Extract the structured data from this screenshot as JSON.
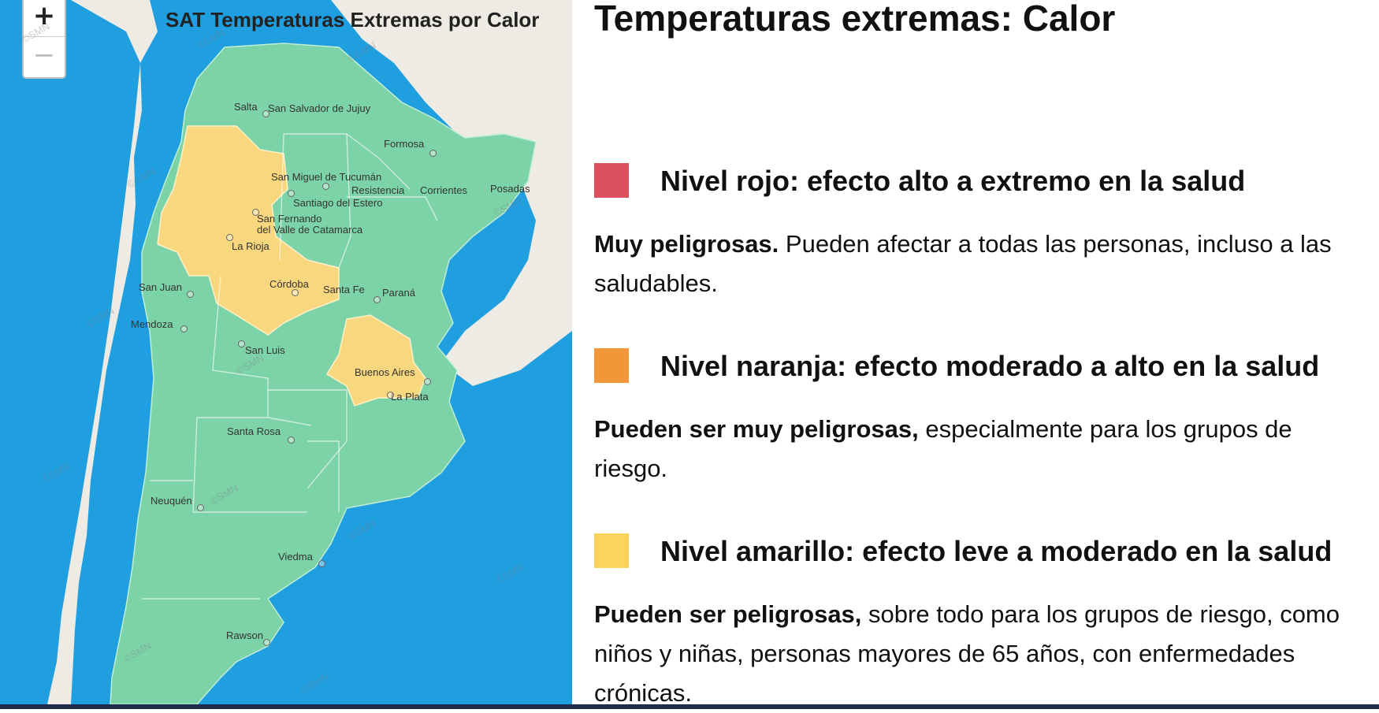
{
  "map": {
    "title": "SAT Temperaturas Extremas por Calor",
    "zoom_in_label": "+",
    "zoom_out_label": "−",
    "watermark": "©SMN",
    "colors": {
      "water": "#1f9fe0",
      "land_neighbor": "#eeebe4",
      "green": "#7dd3a8",
      "yellow": "#f9d77f"
    },
    "cities": [
      "Salta",
      "San Salvador de Jujuy",
      "Formosa",
      "San Miguel de Tucumán",
      "Resistencia",
      "Corrientes",
      "Posadas",
      "Santiago del Estero",
      "San Fernando",
      "del Valle de Catamarca",
      "La Rioja",
      "San Juan",
      "Córdoba",
      "Santa Fe",
      "Paraná",
      "Mendoza",
      "San Luis",
      "Buenos Aires",
      "La Plata",
      "Santa Rosa",
      "Neuquén",
      "Viedma",
      "Rawson"
    ]
  },
  "panel": {
    "title": "Temperaturas extremas: Calor",
    "levels": [
      {
        "color": "#dc5060",
        "heading": "Nivel rojo: efecto alto a extremo en la salud",
        "desc_bold": "Muy peligrosas.",
        "desc_rest": " Pueden afectar a todas las personas, incluso a las saludables."
      },
      {
        "color": "#f2963a",
        "heading": "Nivel naranja: efecto moderado a alto en la salud",
        "desc_bold": "Pueden ser muy peligrosas,",
        "desc_rest": " especialmente para los grupos de riesgo."
      },
      {
        "color": "#fcd35c",
        "heading": "Nivel amarillo: efecto leve a moderado en la salud",
        "desc_bold": "Pueden ser peligrosas,",
        "desc_rest": " sobre todo para los grupos de riesgo, como niños y niñas, personas mayores de 65 años, con enfermedades crónicas."
      }
    ]
  }
}
